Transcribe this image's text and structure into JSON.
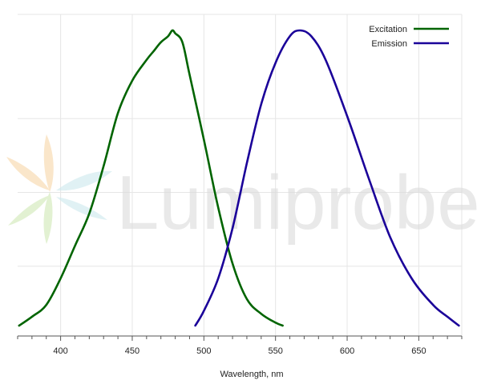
{
  "watermark": {
    "text": "Lumiprobe"
  },
  "chart_data": {
    "type": "line",
    "xlabel": "Wavelength, nm",
    "ylabel": "",
    "xlim": [
      370,
      680
    ],
    "ylim": [
      0,
      1.0
    ],
    "x_ticks": [
      400,
      450,
      500,
      550,
      600,
      650
    ],
    "x_minor_step": 10,
    "y_grid_values": [
      0.25,
      0.5,
      0.75,
      1.0
    ],
    "grid": true,
    "legend_position": "top-right",
    "series": [
      {
        "name": "Excitation",
        "color": "#006400",
        "points": [
          [
            371,
            0.0
          ],
          [
            380,
            0.03
          ],
          [
            390,
            0.07
          ],
          [
            400,
            0.16
          ],
          [
            410,
            0.27
          ],
          [
            420,
            0.38
          ],
          [
            430,
            0.54
          ],
          [
            440,
            0.72
          ],
          [
            450,
            0.83
          ],
          [
            460,
            0.9
          ],
          [
            465,
            0.93
          ],
          [
            470,
            0.96
          ],
          [
            475,
            0.98
          ],
          [
            478,
            1.0
          ],
          [
            480,
            0.99
          ],
          [
            485,
            0.96
          ],
          [
            490,
            0.85
          ],
          [
            500,
            0.63
          ],
          [
            510,
            0.4
          ],
          [
            520,
            0.21
          ],
          [
            530,
            0.09
          ],
          [
            540,
            0.04
          ],
          [
            550,
            0.01
          ],
          [
            555,
            0.0
          ]
        ]
      },
      {
        "name": "Emission",
        "color": "#1a0099",
        "points": [
          [
            494,
            0.0
          ],
          [
            500,
            0.05
          ],
          [
            510,
            0.16
          ],
          [
            520,
            0.33
          ],
          [
            530,
            0.55
          ],
          [
            540,
            0.75
          ],
          [
            550,
            0.89
          ],
          [
            560,
            0.98
          ],
          [
            567,
            1.0
          ],
          [
            575,
            0.98
          ],
          [
            585,
            0.9
          ],
          [
            600,
            0.71
          ],
          [
            615,
            0.5
          ],
          [
            630,
            0.3
          ],
          [
            645,
            0.16
          ],
          [
            660,
            0.07
          ],
          [
            670,
            0.03
          ],
          [
            678,
            0.0
          ]
        ]
      }
    ]
  }
}
